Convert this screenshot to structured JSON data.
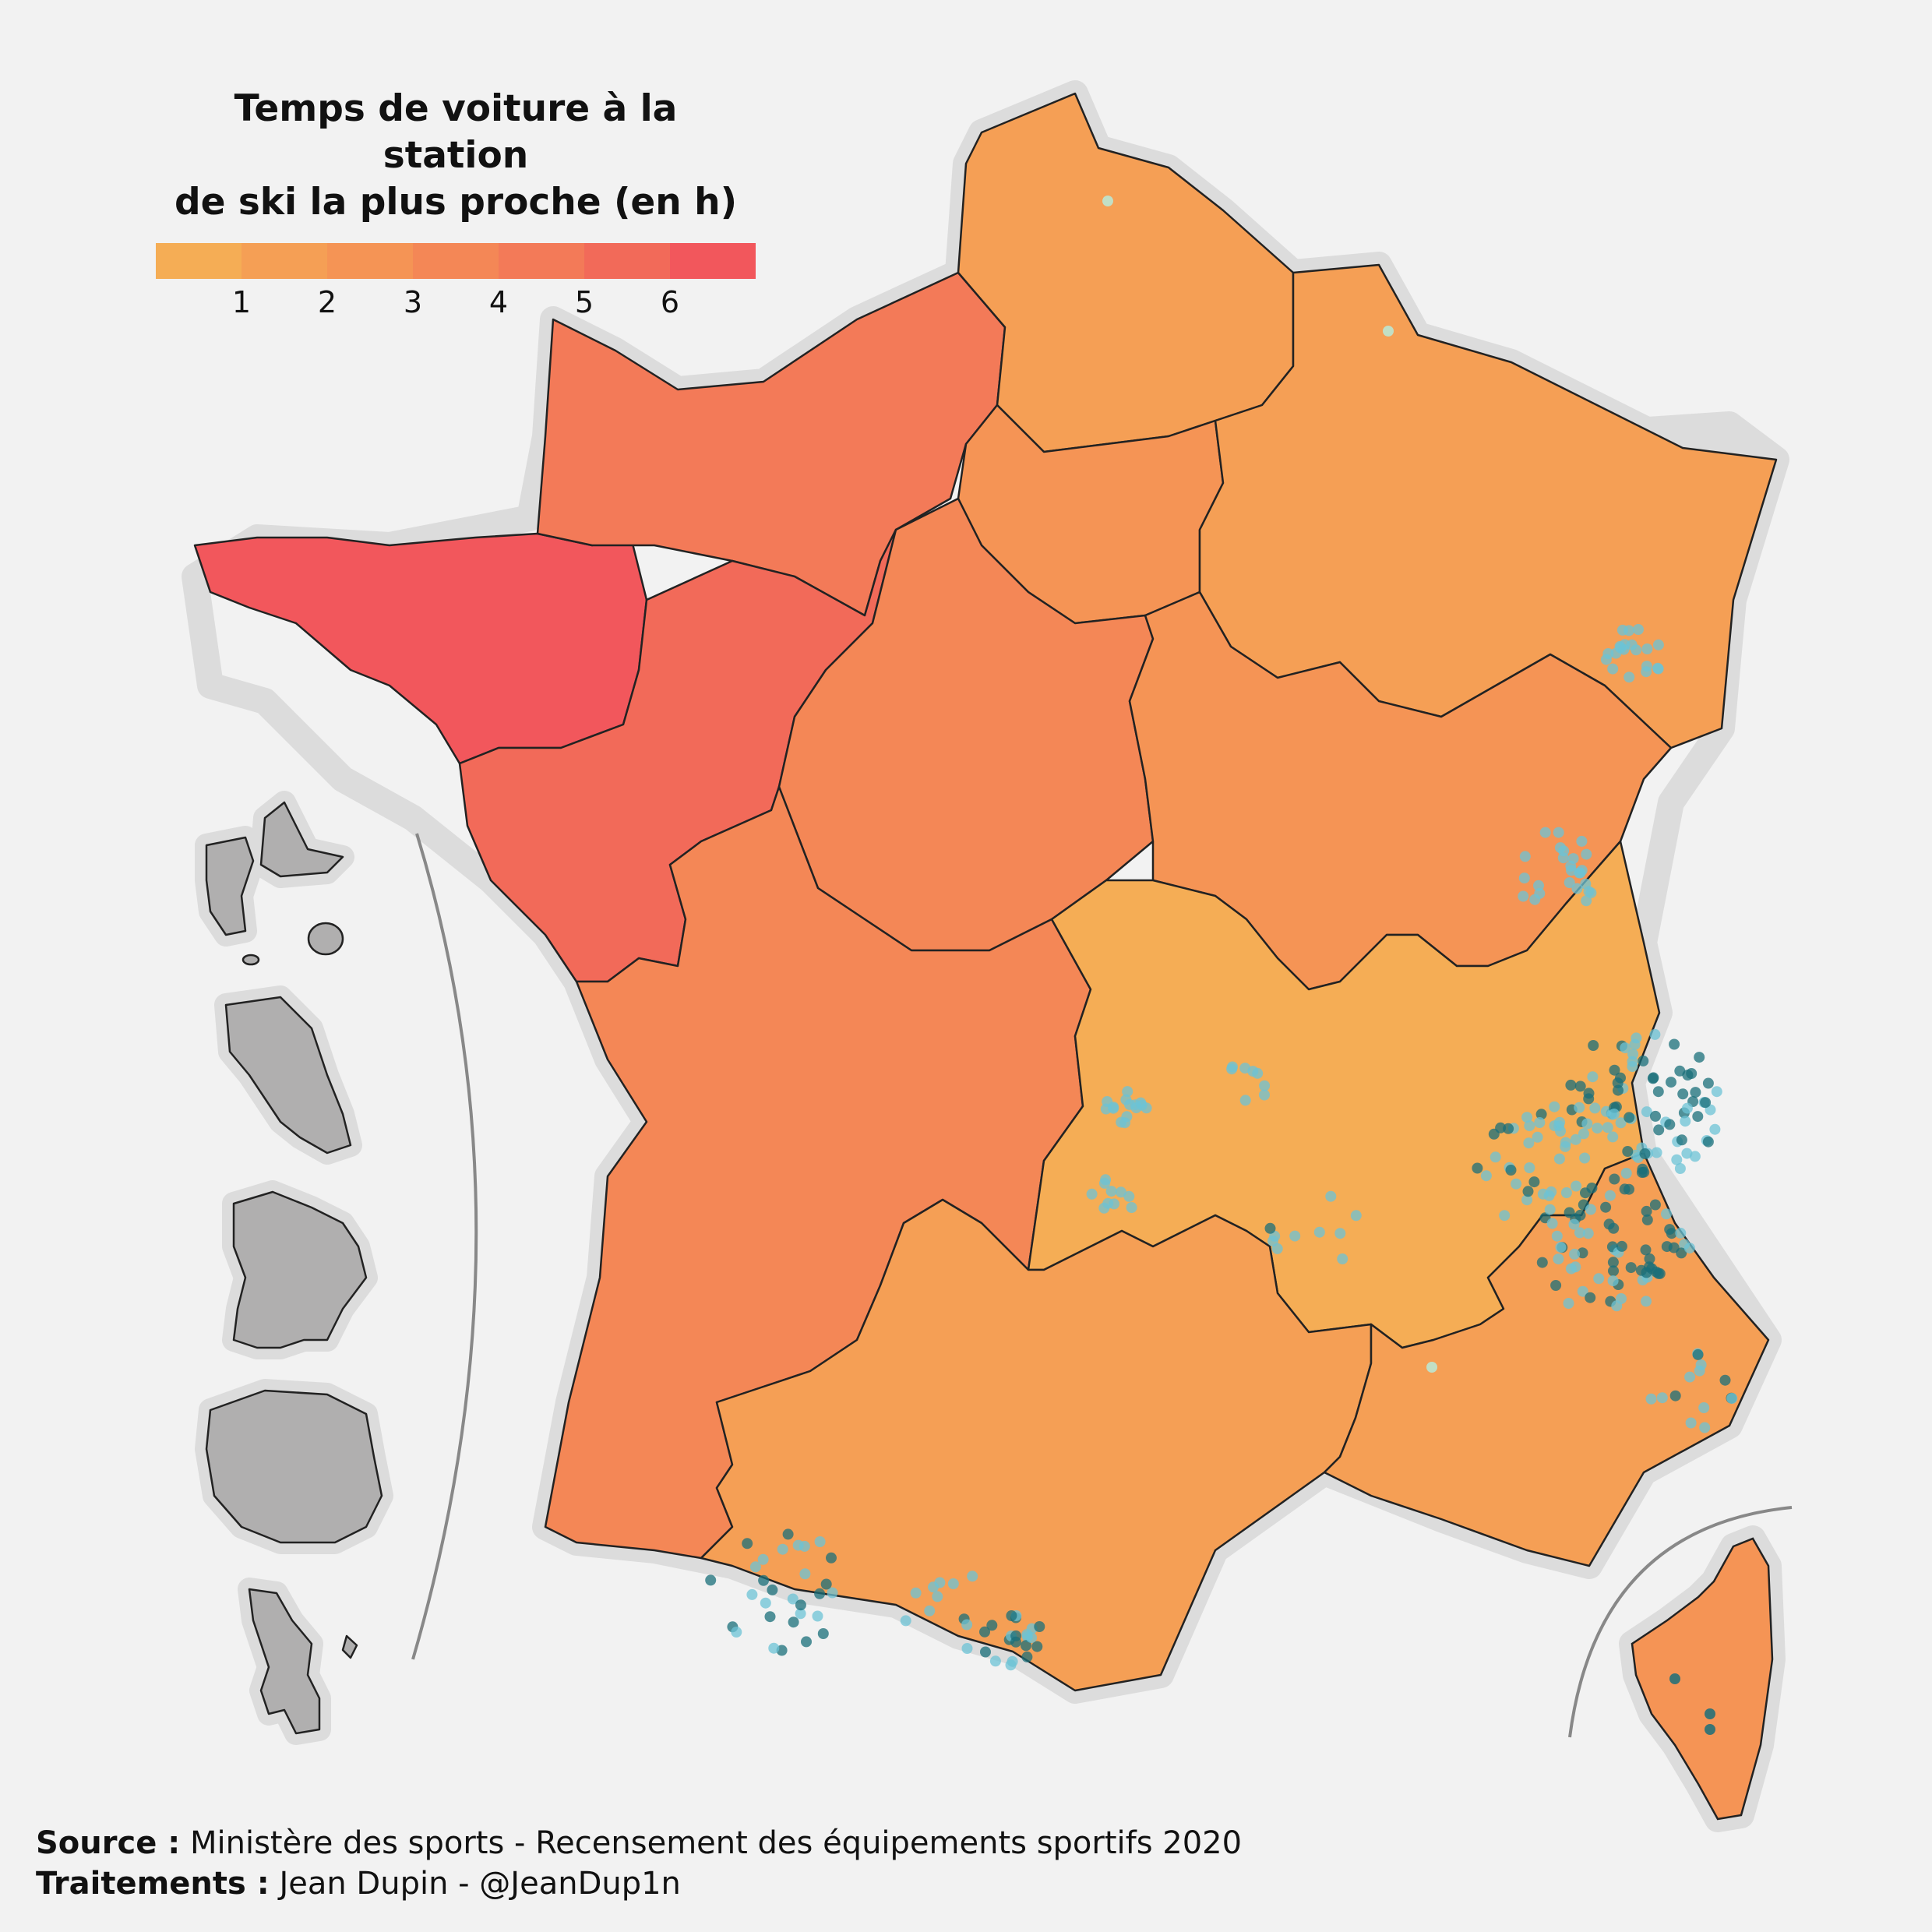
{
  "legend": {
    "title_line1": "Temps de voiture à la station",
    "title_line2": "de ski la plus proche (en h)",
    "ticks": [
      "1",
      "2",
      "3",
      "4",
      "5",
      "6"
    ],
    "colors": [
      "#f5ad55",
      "#f59f55",
      "#f59455",
      "#f48756",
      "#f37a58",
      "#f26a59",
      "#f2575c"
    ]
  },
  "credits": {
    "source_label": "Source :",
    "source_text": "Ministère des sports - Recensement des équipements sportifs 2020",
    "processing_label": "Traitements :",
    "processing_text": "Jean Dupin - @JeanDup1n"
  },
  "map": {
    "region_colors": {
      "bretagne": "#f2575c",
      "pays_de_la_loire": "#f26a59",
      "normandie": "#f37a58",
      "centre": "#f48756",
      "nouvelle_aquitaine": "#f48756",
      "ile_de_france": "#f59455",
      "hauts_de_france": "#f59f55",
      "grand_est": "#f59f55",
      "bourgogne": "#f59455",
      "auvergne_rhone_alpes": "#f5ad55",
      "occitanie": "#f59f55",
      "paca": "#f59f55",
      "corse": "#f59455"
    },
    "overseas_color": "#b0afaf",
    "station_color_light": "#6cc3d5",
    "station_color_dark": "#1a6f7a"
  }
}
